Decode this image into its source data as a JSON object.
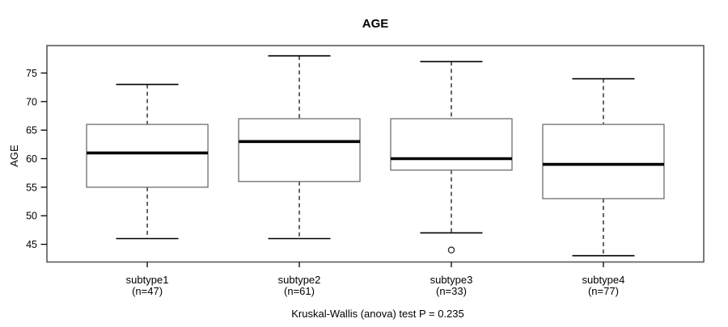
{
  "chart_data": {
    "type": "boxplot",
    "title": "AGE",
    "xlabel": "",
    "ylabel": "AGE",
    "annotation": "Kruskal-Wallis (anova) test P = 0.235",
    "p_value": 0.235,
    "y_ticks": [
      45,
      50,
      55,
      60,
      65,
      70,
      75
    ],
    "ylim": [
      41.9,
      79.8
    ],
    "grid": false,
    "legend": "none",
    "groups": [
      {
        "label": "subtype1",
        "n_label": "(n=47)",
        "n": 47,
        "whisker_low": 46,
        "q1": 55,
        "median": 61,
        "q3": 66,
        "whisker_high": 73,
        "outliers": []
      },
      {
        "label": "subtype2",
        "n_label": "(n=61)",
        "n": 61,
        "whisker_low": 46,
        "q1": 56,
        "median": 63,
        "q3": 67,
        "whisker_high": 78,
        "outliers": []
      },
      {
        "label": "subtype3",
        "n_label": "(n=33)",
        "n": 33,
        "whisker_low": 47,
        "q1": 58,
        "median": 60,
        "q3": 67,
        "whisker_high": 77,
        "outliers": [
          44
        ]
      },
      {
        "label": "subtype4",
        "n_label": "(n=77)",
        "n": 77,
        "whisker_low": 43,
        "q1": 53,
        "median": 59,
        "q3": 66,
        "whisker_high": 74,
        "outliers": []
      }
    ],
    "colors": {
      "background": "#ffffff",
      "frame": "#595959",
      "box_border": "#6e6e6e",
      "box_fill": "#ffffff",
      "median": "#000000",
      "whisker": "#000000",
      "outlier": "#2b2b2b",
      "text": "#000000"
    }
  }
}
